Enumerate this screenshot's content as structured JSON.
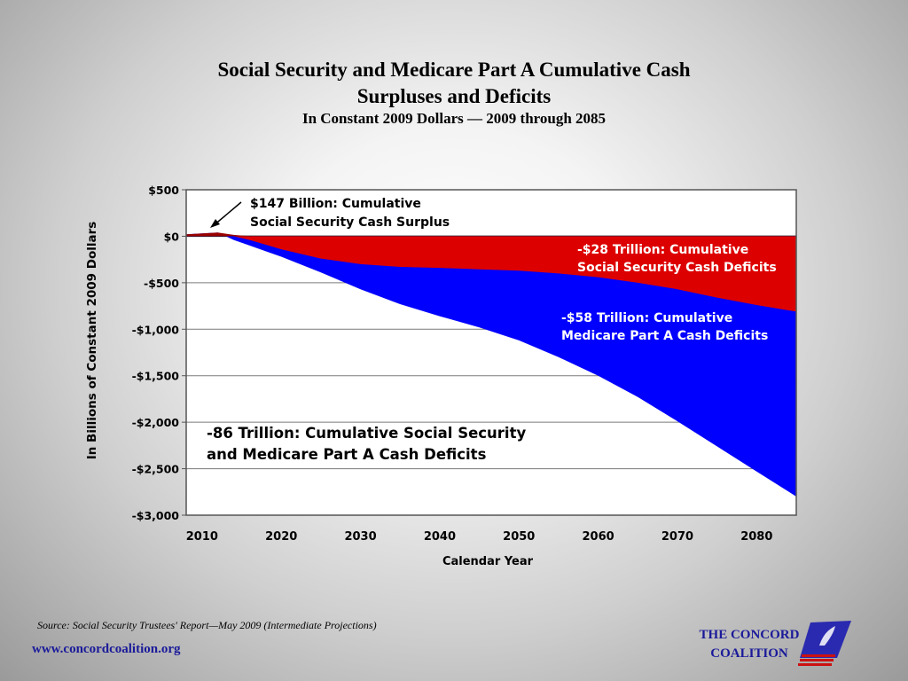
{
  "chart_data": {
    "type": "area",
    "title_line1": "Social Security and Medicare Part A Cumulative Cash",
    "title_line2": "Surpluses and Deficits",
    "subtitle": "In Constant 2009 Dollars — 2009 through 2085",
    "xlabel": "Calendar Year",
    "ylabel": "In Billions of Constant 2009 Dollars",
    "xlim": [
      2008,
      2085
    ],
    "ylim": [
      -3000,
      500
    ],
    "x_ticks": [
      2010,
      2020,
      2030,
      2040,
      2050,
      2060,
      2070,
      2080
    ],
    "y_ticks": [
      500,
      0,
      -500,
      -1000,
      -1500,
      -2000,
      -2500,
      -3000
    ],
    "y_tick_labels": [
      "$500",
      "$0",
      "-$500",
      "-$1,000",
      "-$1,500",
      "-$2,000",
      "-$2,500",
      "-$3,000"
    ],
    "grid": true,
    "series": [
      {
        "role": "social-security-cumulative",
        "color": "#dd0000",
        "x": [
          2008,
          2010,
          2012,
          2014,
          2016,
          2018,
          2020,
          2025,
          2030,
          2035,
          2040,
          2045,
          2050,
          2055,
          2060,
          2065,
          2070,
          2075,
          2080,
          2085
        ],
        "y": [
          20,
          30,
          40,
          15,
          -40,
          -90,
          -140,
          -240,
          -300,
          -330,
          -340,
          -355,
          -370,
          -400,
          -440,
          -500,
          -570,
          -660,
          -740,
          -810
        ]
      },
      {
        "role": "combined-cumulative",
        "color": "#0000ff",
        "x": [
          2008,
          2010,
          2012,
          2014,
          2016,
          2018,
          2020,
          2025,
          2030,
          2035,
          2040,
          2045,
          2050,
          2055,
          2060,
          2065,
          2070,
          2075,
          2080,
          2085
        ],
        "y": [
          20,
          30,
          40,
          -40,
          -100,
          -160,
          -220,
          -390,
          -570,
          -730,
          -860,
          -980,
          -1120,
          -1300,
          -1500,
          -1730,
          -1990,
          -2260,
          -2530,
          -2800
        ]
      }
    ],
    "annotations": {
      "surplus_line1": "$147 Billion:  Cumulative",
      "surplus_line2": "Social Security Cash Surplus",
      "ss_deficit_line1": "-$28 Trillion:  Cumulative",
      "ss_deficit_line2": "Social Security Cash Deficits",
      "medicare_line1": "-$58 Trillion:  Cumulative",
      "medicare_line2": "Medicare Part A Cash Deficits",
      "total_line1": "-86 Trillion:  Cumulative Social Security",
      "total_line2": "and Medicare Part A Cash Deficits"
    }
  },
  "footer": {
    "source": "Source:  Social Security Trustees' Report—May 2009 (Intermediate Projections)",
    "website": "www.concordcoalition.org",
    "org_line1": "THE CONCORD",
    "org_line2": "COALITION"
  }
}
